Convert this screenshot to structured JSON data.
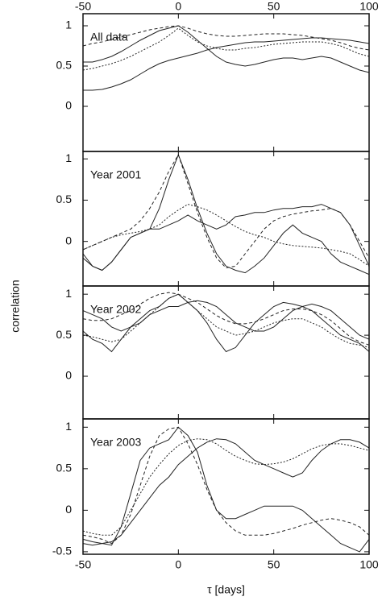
{
  "chart_data": [
    {
      "type": "line",
      "annotation": "All data",
      "x": [
        -50,
        -45,
        -40,
        -35,
        -30,
        -25,
        -20,
        -15,
        -10,
        -5,
        0,
        5,
        10,
        15,
        20,
        25,
        30,
        35,
        40,
        45,
        50,
        55,
        60,
        65,
        70,
        75,
        80,
        85,
        90,
        95,
        100
      ],
      "xlim": [
        -50,
        100
      ],
      "xticks": [
        -50,
        0,
        50,
        100
      ],
      "ylim": [
        -0.56,
        1.15
      ],
      "yticks": [
        0,
        0.5,
        1
      ],
      "series": [
        {
          "color": "#222",
          "values": [
            0.55,
            0.55,
            0.58,
            0.62,
            0.68,
            0.75,
            0.82,
            0.88,
            0.94,
            0.97,
            1.0,
            0.92,
            0.82,
            0.72,
            0.62,
            0.55,
            0.52,
            0.5,
            0.52,
            0.55,
            0.58,
            0.6,
            0.6,
            0.58,
            0.6,
            0.62,
            0.6,
            0.55,
            0.5,
            0.45,
            0.42
          ]
        },
        {
          "color": "#222",
          "values": [
            0.2,
            0.2,
            0.21,
            0.24,
            0.28,
            0.33,
            0.4,
            0.47,
            0.53,
            0.57,
            0.6,
            0.63,
            0.66,
            0.7,
            0.73,
            0.75,
            0.77,
            0.79,
            0.8,
            0.8,
            0.81,
            0.82,
            0.83,
            0.84,
            0.85,
            0.85,
            0.84,
            0.83,
            0.82,
            0.8,
            0.78
          ]
        },
        {
          "color": "#222",
          "dash": "4 3",
          "values": [
            0.75,
            0.78,
            0.8,
            0.83,
            0.86,
            0.89,
            0.92,
            0.95,
            0.97,
            0.99,
            1.0,
            0.97,
            0.93,
            0.9,
            0.88,
            0.87,
            0.87,
            0.88,
            0.89,
            0.9,
            0.9,
            0.9,
            0.89,
            0.88,
            0.86,
            0.84,
            0.82,
            0.79,
            0.75,
            0.72,
            0.7
          ]
        },
        {
          "color": "#222",
          "dash": "2 2",
          "values": [
            0.45,
            0.47,
            0.5,
            0.53,
            0.57,
            0.62,
            0.68,
            0.74,
            0.8,
            0.88,
            0.97,
            0.88,
            0.8,
            0.75,
            0.72,
            0.7,
            0.7,
            0.72,
            0.73,
            0.75,
            0.77,
            0.78,
            0.79,
            0.8,
            0.8,
            0.8,
            0.78,
            0.75,
            0.7,
            0.65,
            0.62
          ]
        }
      ]
    },
    {
      "type": "line",
      "annotation": "Year 2001",
      "x": [
        -50,
        -45,
        -40,
        -35,
        -30,
        -25,
        -20,
        -15,
        -10,
        -5,
        0,
        5,
        10,
        15,
        20,
        25,
        30,
        35,
        40,
        45,
        50,
        55,
        60,
        65,
        70,
        75,
        80,
        85,
        90,
        95,
        100
      ],
      "xlim": [
        -50,
        100
      ],
      "xticks": [
        -50,
        0,
        50,
        100
      ],
      "ylim": [
        -0.54,
        1.09
      ],
      "yticks": [
        0,
        0.5,
        1
      ],
      "series": [
        {
          "color": "#222",
          "values": [
            -0.15,
            -0.3,
            -0.35,
            -0.25,
            -0.1,
            0.05,
            0.1,
            0.15,
            0.4,
            0.75,
            1.05,
            0.75,
            0.4,
            0.1,
            -0.15,
            -0.3,
            -0.35,
            -0.38,
            -0.3,
            -0.2,
            -0.05,
            0.1,
            0.2,
            0.1,
            0.05,
            0.0,
            -0.15,
            -0.25,
            -0.3,
            -0.35,
            -0.4
          ]
        },
        {
          "color": "#222",
          "values": [
            -0.2,
            -0.3,
            -0.35,
            -0.25,
            -0.1,
            0.05,
            0.1,
            0.15,
            0.15,
            0.2,
            0.25,
            0.32,
            0.25,
            0.2,
            0.15,
            0.2,
            0.3,
            0.32,
            0.35,
            0.35,
            0.38,
            0.4,
            0.4,
            0.42,
            0.42,
            0.45,
            0.4,
            0.35,
            0.2,
            -0.05,
            -0.3
          ]
        },
        {
          "color": "#222",
          "dash": "4 3",
          "values": [
            -0.1,
            -0.05,
            0.0,
            0.05,
            0.1,
            0.15,
            0.25,
            0.4,
            0.6,
            0.85,
            1.05,
            0.7,
            0.35,
            0.05,
            -0.2,
            -0.32,
            -0.3,
            -0.15,
            0.0,
            0.15,
            0.25,
            0.3,
            0.33,
            0.35,
            0.37,
            0.38,
            0.4,
            0.35,
            0.2,
            0.0,
            -0.2
          ]
        },
        {
          "color": "#222",
          "dash": "2 2",
          "values": [
            -0.1,
            -0.05,
            0.0,
            0.05,
            0.08,
            0.1,
            0.12,
            0.15,
            0.2,
            0.3,
            0.38,
            0.45,
            0.42,
            0.38,
            0.32,
            0.25,
            0.18,
            0.12,
            0.08,
            0.05,
            0.0,
            -0.03,
            -0.05,
            -0.06,
            -0.07,
            -0.08,
            -0.1,
            -0.12,
            -0.15,
            -0.22,
            -0.3
          ]
        }
      ]
    },
    {
      "type": "line",
      "annotation": "Year 2002",
      "x": [
        -50,
        -45,
        -40,
        -35,
        -30,
        -25,
        -20,
        -15,
        -10,
        -5,
        0,
        5,
        10,
        15,
        20,
        25,
        30,
        35,
        40,
        45,
        50,
        55,
        60,
        65,
        70,
        75,
        80,
        85,
        90,
        95,
        100
      ],
      "xlim": [
        -50,
        100
      ],
      "xticks": [
        -50,
        0,
        50,
        100
      ],
      "ylim": [
        -0.52,
        1.1
      ],
      "yticks": [
        0,
        0.5,
        1
      ],
      "series": [
        {
          "color": "#222",
          "values": [
            0.55,
            0.45,
            0.4,
            0.3,
            0.45,
            0.6,
            0.7,
            0.8,
            0.85,
            0.95,
            1.0,
            0.9,
            0.8,
            0.65,
            0.45,
            0.3,
            0.35,
            0.5,
            0.65,
            0.75,
            0.85,
            0.9,
            0.88,
            0.85,
            0.8,
            0.7,
            0.6,
            0.5,
            0.45,
            0.4,
            0.3
          ]
        },
        {
          "color": "#222",
          "values": [
            0.8,
            0.75,
            0.7,
            0.6,
            0.55,
            0.6,
            0.65,
            0.75,
            0.8,
            0.85,
            0.85,
            0.9,
            0.92,
            0.9,
            0.85,
            0.75,
            0.65,
            0.6,
            0.55,
            0.55,
            0.6,
            0.7,
            0.8,
            0.85,
            0.88,
            0.85,
            0.8,
            0.7,
            0.6,
            0.5,
            0.45
          ]
        },
        {
          "color": "#222",
          "dash": "4 3",
          "values": [
            0.7,
            0.68,
            0.68,
            0.7,
            0.75,
            0.8,
            0.88,
            0.95,
            1.0,
            1.02,
            1.0,
            0.95,
            0.9,
            0.82,
            0.74,
            0.68,
            0.64,
            0.64,
            0.66,
            0.7,
            0.75,
            0.8,
            0.82,
            0.82,
            0.8,
            0.75,
            0.68,
            0.58,
            0.48,
            0.42,
            0.38
          ]
        },
        {
          "color": "#222",
          "dash": "2 2",
          "values": [
            0.5,
            0.48,
            0.45,
            0.42,
            0.45,
            0.55,
            0.65,
            0.75,
            0.85,
            0.95,
            1.0,
            0.9,
            0.8,
            0.7,
            0.6,
            0.55,
            0.5,
            0.52,
            0.55,
            0.6,
            0.65,
            0.68,
            0.7,
            0.7,
            0.65,
            0.6,
            0.52,
            0.45,
            0.4,
            0.38,
            0.35
          ]
        }
      ]
    },
    {
      "type": "line",
      "annotation": "Year 2003",
      "xlabel": "τ [days]",
      "ylabel": "correlation",
      "x": [
        -50,
        -45,
        -40,
        -35,
        -30,
        -25,
        -20,
        -15,
        -10,
        -5,
        0,
        5,
        10,
        15,
        20,
        25,
        30,
        35,
        40,
        45,
        50,
        55,
        60,
        65,
        70,
        75,
        80,
        85,
        90,
        95,
        100
      ],
      "xlim": [
        -50,
        100
      ],
      "xticks": [
        -50,
        0,
        50,
        100
      ],
      "ylim": [
        -0.53,
        1.1
      ],
      "yticks": [
        -0.5,
        0,
        0.5,
        1
      ],
      "series": [
        {
          "color": "#222",
          "values": [
            -0.35,
            -0.38,
            -0.4,
            -0.42,
            -0.2,
            0.2,
            0.6,
            0.75,
            0.8,
            0.85,
            1.0,
            0.9,
            0.7,
            0.3,
            0.0,
            -0.1,
            -0.1,
            -0.05,
            0.0,
            0.05,
            0.05,
            0.05,
            0.05,
            0.0,
            -0.1,
            -0.2,
            -0.3,
            -0.4,
            -0.45,
            -0.5,
            -0.35
          ]
        },
        {
          "color": "#222",
          "values": [
            -0.4,
            -0.42,
            -0.4,
            -0.38,
            -0.3,
            -0.15,
            0.0,
            0.15,
            0.3,
            0.4,
            0.55,
            0.65,
            0.75,
            0.82,
            0.86,
            0.85,
            0.8,
            0.7,
            0.6,
            0.55,
            0.5,
            0.45,
            0.4,
            0.45,
            0.6,
            0.72,
            0.8,
            0.85,
            0.85,
            0.82,
            0.75
          ]
        },
        {
          "color": "#222",
          "dash": "4 3",
          "values": [
            -0.3,
            -0.32,
            -0.35,
            -0.4,
            -0.3,
            -0.05,
            0.3,
            0.65,
            0.9,
            0.98,
            1.0,
            0.8,
            0.55,
            0.25,
            0.0,
            -0.15,
            -0.25,
            -0.3,
            -0.3,
            -0.3,
            -0.28,
            -0.25,
            -0.22,
            -0.18,
            -0.15,
            -0.12,
            -0.1,
            -0.12,
            -0.15,
            -0.2,
            -0.3
          ]
        },
        {
          "color": "#222",
          "dash": "2 2",
          "values": [
            -0.25,
            -0.28,
            -0.3,
            -0.3,
            -0.2,
            0.0,
            0.2,
            0.4,
            0.55,
            0.68,
            0.78,
            0.84,
            0.86,
            0.85,
            0.8,
            0.72,
            0.65,
            0.6,
            0.56,
            0.55,
            0.56,
            0.58,
            0.62,
            0.68,
            0.74,
            0.78,
            0.8,
            0.8,
            0.78,
            0.75,
            0.72
          ]
        }
      ]
    }
  ]
}
